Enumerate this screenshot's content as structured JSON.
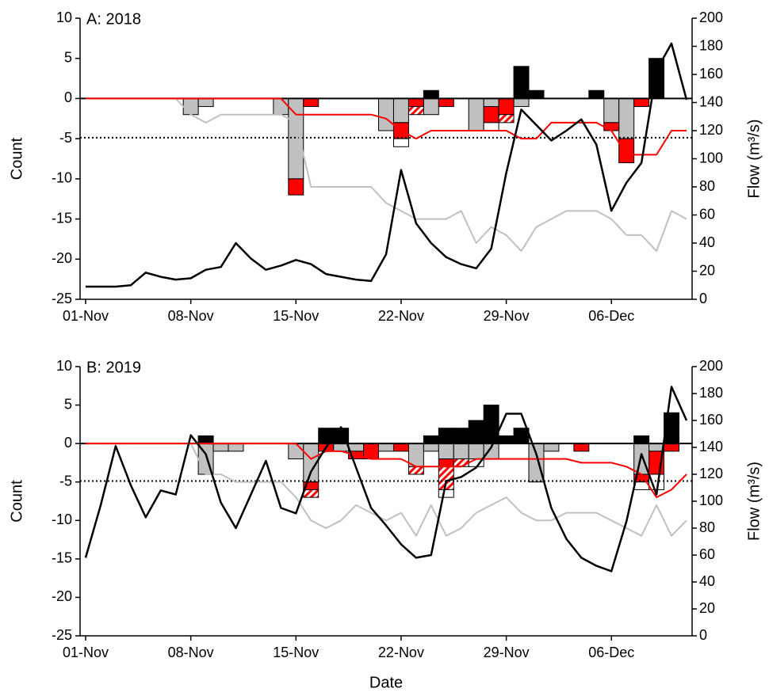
{
  "chart_data": [
    {
      "type": "bar",
      "title": "A: 2018",
      "ylabel": "Count",
      "y2label": "Flow (m³/s)",
      "categories": [
        "01-Nov",
        null,
        null,
        null,
        null,
        null,
        null,
        "08-Nov",
        null,
        null,
        null,
        null,
        null,
        null,
        "15-Nov",
        null,
        null,
        null,
        null,
        null,
        null,
        "22-Nov",
        null,
        null,
        null,
        null,
        null,
        null,
        "29-Nov",
        null,
        null,
        null,
        null,
        null,
        null,
        "06-Dec",
        null,
        null,
        null,
        null,
        null
      ],
      "ylim": [
        -25,
        10
      ],
      "yticks": [
        -25,
        -20,
        -15,
        -10,
        -5,
        0,
        5,
        10
      ],
      "y2lim": [
        0,
        200
      ],
      "y2ticks": [
        0,
        20,
        40,
        60,
        80,
        100,
        120,
        140,
        160,
        180,
        200
      ],
      "reference_line": {
        "value": 115,
        "axis": "y2",
        "style": "dotted"
      },
      "series": [
        {
          "color": "#000000",
          "values": [
            null,
            null,
            null,
            null,
            null,
            null,
            null,
            null,
            null,
            null,
            null,
            null,
            null,
            null,
            null,
            null,
            null,
            null,
            null,
            null,
            null,
            null,
            null,
            1,
            null,
            null,
            null,
            null,
            null,
            4,
            1,
            null,
            null,
            null,
            1,
            null,
            null,
            null,
            5,
            null,
            null
          ]
        },
        {
          "color": "#c0c0c0",
          "values": [
            null,
            null,
            null,
            null,
            null,
            null,
            null,
            -2,
            -1,
            null,
            null,
            null,
            null,
            -2,
            -10,
            null,
            null,
            null,
            null,
            null,
            -4,
            -3,
            null,
            -2,
            null,
            null,
            -4,
            -1,
            null,
            -1,
            null,
            null,
            null,
            null,
            null,
            -3,
            -5,
            null,
            null,
            null,
            null
          ]
        },
        {
          "color": "#ff0000",
          "values": [
            null,
            null,
            null,
            null,
            null,
            null,
            null,
            null,
            null,
            null,
            null,
            null,
            null,
            null,
            -2,
            -1,
            null,
            null,
            null,
            null,
            null,
            -2,
            -1,
            null,
            -1,
            null,
            null,
            -2,
            -2,
            null,
            null,
            null,
            null,
            null,
            null,
            -1,
            -3,
            -1,
            null,
            null,
            null
          ]
        },
        {
          "color": "#ff0000",
          "hatch": true,
          "values": [
            null,
            null,
            null,
            null,
            null,
            null,
            null,
            null,
            null,
            null,
            null,
            null,
            null,
            null,
            null,
            null,
            null,
            null,
            null,
            null,
            null,
            null,
            -1,
            null,
            null,
            null,
            null,
            null,
            -1,
            null,
            null,
            null,
            null,
            null,
            null,
            null,
            null,
            null,
            null,
            null,
            null
          ]
        },
        {
          "color": "#ffffff",
          "values": [
            null,
            null,
            null,
            null,
            null,
            null,
            null,
            null,
            null,
            null,
            null,
            null,
            null,
            null,
            null,
            null,
            null,
            null,
            null,
            null,
            null,
            -1,
            null,
            null,
            null,
            null,
            null,
            -1,
            null,
            null,
            null,
            null,
            null,
            null,
            null,
            null,
            null,
            null,
            null,
            null,
            null
          ]
        },
        {
          "type": "line",
          "color": "#c0c0c0",
          "values": [
            0,
            0,
            0,
            0,
            0,
            0,
            0,
            -2,
            -3,
            -2,
            -2,
            -2,
            -2,
            -2,
            -3,
            -11,
            -11,
            -11,
            -11,
            -11,
            -13,
            -14,
            -15,
            -15,
            -15,
            -14,
            -18,
            -16,
            -17,
            -19,
            -16,
            -15,
            -14,
            -14,
            -14,
            -15,
            -17,
            -17,
            -19,
            -14,
            -15
          ]
        },
        {
          "type": "line",
          "color": "#ff0000",
          "values": [
            0,
            0,
            0,
            0,
            0,
            0,
            0,
            0,
            0,
            0,
            0,
            0,
            0,
            0,
            -2,
            -2,
            -2,
            -2,
            -2,
            -2,
            -2.5,
            -4,
            -5,
            -4,
            -4,
            -4,
            -4,
            -4,
            -4,
            -5,
            -5,
            -3,
            -3,
            -3,
            -3,
            -4,
            -7,
            -7,
            -7,
            -4,
            -4
          ]
        },
        {
          "type": "line",
          "axis": "y2",
          "color": "#000000",
          "values": [
            9,
            9,
            9,
            10,
            19,
            16,
            14,
            15,
            21,
            23,
            40,
            29,
            21,
            24,
            28,
            25,
            18,
            16,
            14,
            13,
            32,
            92,
            54,
            40,
            30,
            25,
            22,
            36,
            90,
            135,
            124,
            113,
            120,
            128,
            110,
            63,
            83,
            97,
            163,
            182,
            142
          ]
        }
      ]
    },
    {
      "type": "bar",
      "title": "B: 2019",
      "ylabel": "Count",
      "y2label": "Flow (m³/s)",
      "xlabel": "Date",
      "categories": [
        "01-Nov",
        null,
        null,
        null,
        null,
        null,
        null,
        "08-Nov",
        null,
        null,
        null,
        null,
        null,
        null,
        "15-Nov",
        null,
        null,
        null,
        null,
        null,
        null,
        "22-Nov",
        null,
        null,
        null,
        null,
        null,
        null,
        "29-Nov",
        null,
        null,
        null,
        null,
        null,
        null,
        "06-Dec",
        null,
        null,
        null,
        null,
        null
      ],
      "ylim": [
        -25,
        10
      ],
      "yticks": [
        -25,
        -20,
        -15,
        -10,
        -5,
        0,
        5,
        10
      ],
      "y2lim": [
        0,
        200
      ],
      "y2ticks": [
        0,
        20,
        40,
        60,
        80,
        100,
        120,
        140,
        160,
        180,
        200
      ],
      "reference_line": {
        "value": 115,
        "axis": "y2",
        "style": "dotted"
      },
      "series": [
        {
          "color": "#000000",
          "values": [
            null,
            null,
            null,
            null,
            null,
            null,
            null,
            null,
            1,
            null,
            null,
            null,
            null,
            null,
            null,
            null,
            2,
            2,
            null,
            null,
            null,
            null,
            null,
            1,
            2,
            2,
            3,
            5,
            1,
            2,
            null,
            null,
            null,
            null,
            null,
            null,
            null,
            1,
            null,
            4,
            null
          ]
        },
        {
          "color": "#c0c0c0",
          "values": [
            null,
            null,
            null,
            null,
            null,
            null,
            null,
            null,
            -4,
            -1,
            -1,
            null,
            null,
            null,
            -2,
            -5,
            null,
            -1,
            -1,
            null,
            -1,
            null,
            -3,
            -1,
            -2,
            -2,
            -2,
            -2,
            null,
            null,
            -5,
            -1,
            null,
            null,
            null,
            null,
            null,
            -4,
            -1,
            null,
            null
          ]
        },
        {
          "color": "#ff0000",
          "values": [
            null,
            null,
            null,
            null,
            null,
            null,
            null,
            null,
            null,
            null,
            null,
            null,
            null,
            null,
            null,
            -1,
            -1,
            null,
            -1,
            -2,
            null,
            -1,
            null,
            null,
            -1,
            null,
            null,
            null,
            null,
            null,
            null,
            null,
            null,
            -1,
            null,
            null,
            null,
            -1,
            -3,
            -1,
            null
          ]
        },
        {
          "color": "#ff0000",
          "hatch": true,
          "values": [
            null,
            null,
            null,
            null,
            null,
            null,
            null,
            null,
            null,
            null,
            null,
            null,
            null,
            null,
            null,
            -1,
            null,
            null,
            null,
            null,
            null,
            null,
            -1,
            null,
            -3,
            -1,
            null,
            null,
            null,
            null,
            null,
            null,
            null,
            null,
            null,
            null,
            null,
            null,
            null,
            null,
            null
          ]
        },
        {
          "color": "#ffffff",
          "values": [
            null,
            null,
            null,
            null,
            null,
            null,
            null,
            null,
            null,
            null,
            null,
            null,
            null,
            null,
            null,
            null,
            null,
            null,
            null,
            null,
            null,
            null,
            null,
            null,
            -1,
            null,
            -1,
            null,
            null,
            null,
            null,
            null,
            null,
            null,
            null,
            null,
            null,
            -1,
            -2,
            null,
            null
          ]
        },
        {
          "type": "line",
          "color": "#c0c0c0",
          "values": [
            0,
            0,
            0,
            0,
            0,
            0,
            0,
            0,
            -4,
            -4,
            -5,
            -5,
            -5,
            -5,
            -7,
            -10,
            -11,
            -10,
            -8,
            -9,
            -10,
            -9,
            -12,
            -8,
            -12,
            -11,
            -9,
            -8,
            -7,
            -9,
            -10,
            -10,
            -9,
            -9,
            -9,
            -10,
            -11,
            -12,
            -8,
            -12,
            -10
          ]
        },
        {
          "type": "line",
          "color": "#ff0000",
          "values": [
            0,
            0,
            0,
            0,
            0,
            0,
            0,
            0,
            0,
            0,
            0,
            0,
            0,
            0,
            0,
            -2,
            -1,
            -1,
            -1.5,
            -2,
            -2,
            -2,
            -3,
            -3,
            -3,
            -3,
            -2,
            -2,
            -2,
            -2,
            -2,
            -2,
            -2,
            -2.5,
            -2.5,
            -2.5,
            -3,
            -4,
            -7,
            -6,
            -4
          ]
        },
        {
          "type": "line",
          "axis": "y2",
          "color": "#000000",
          "values": [
            58,
            97,
            141,
            112,
            88,
            108,
            105,
            149,
            135,
            99,
            80,
            105,
            130,
            95,
            91,
            122,
            140,
            155,
            125,
            95,
            82,
            68,
            58,
            60,
            115,
            118,
            125,
            140,
            165,
            165,
            135,
            95,
            72,
            58,
            52,
            48,
            85,
            135,
            105,
            185,
            160
          ]
        }
      ]
    }
  ]
}
